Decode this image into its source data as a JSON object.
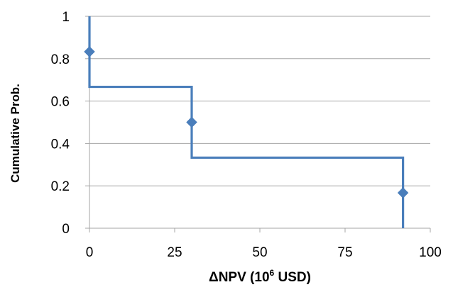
{
  "chart_data": {
    "type": "line",
    "step": true,
    "xlabel": "ΔNPV (10",
    "xlabel_sup": "6",
    "xlabel_suffix": " USD)",
    "ylabel": "Cumulative Prob.",
    "xlim": [
      0,
      100
    ],
    "ylim": [
      0,
      1
    ],
    "xticks": [
      0,
      25,
      50,
      75,
      100
    ],
    "xtick_labels": [
      "0",
      "25",
      "50",
      "75",
      "100"
    ],
    "yticks": [
      0,
      0.2,
      0.4,
      0.6,
      0.8,
      1
    ],
    "ytick_labels": [
      "0",
      "0.2",
      "0.4",
      "0.6",
      "0.8",
      "1"
    ],
    "grid": "horizontal",
    "legend": "none",
    "series": [
      {
        "kind": "step-line",
        "x": [
          0,
          0,
          30,
          30,
          92,
          92
        ],
        "y": [
          1,
          0.667,
          0.667,
          0.333,
          0.333,
          0
        ],
        "color": "#4a7ebb"
      },
      {
        "kind": "markers",
        "marker": "diamond",
        "x": [
          0,
          30,
          92
        ],
        "y": [
          0.833,
          0.5,
          0.167
        ],
        "color": "#4a7ebb"
      }
    ]
  }
}
